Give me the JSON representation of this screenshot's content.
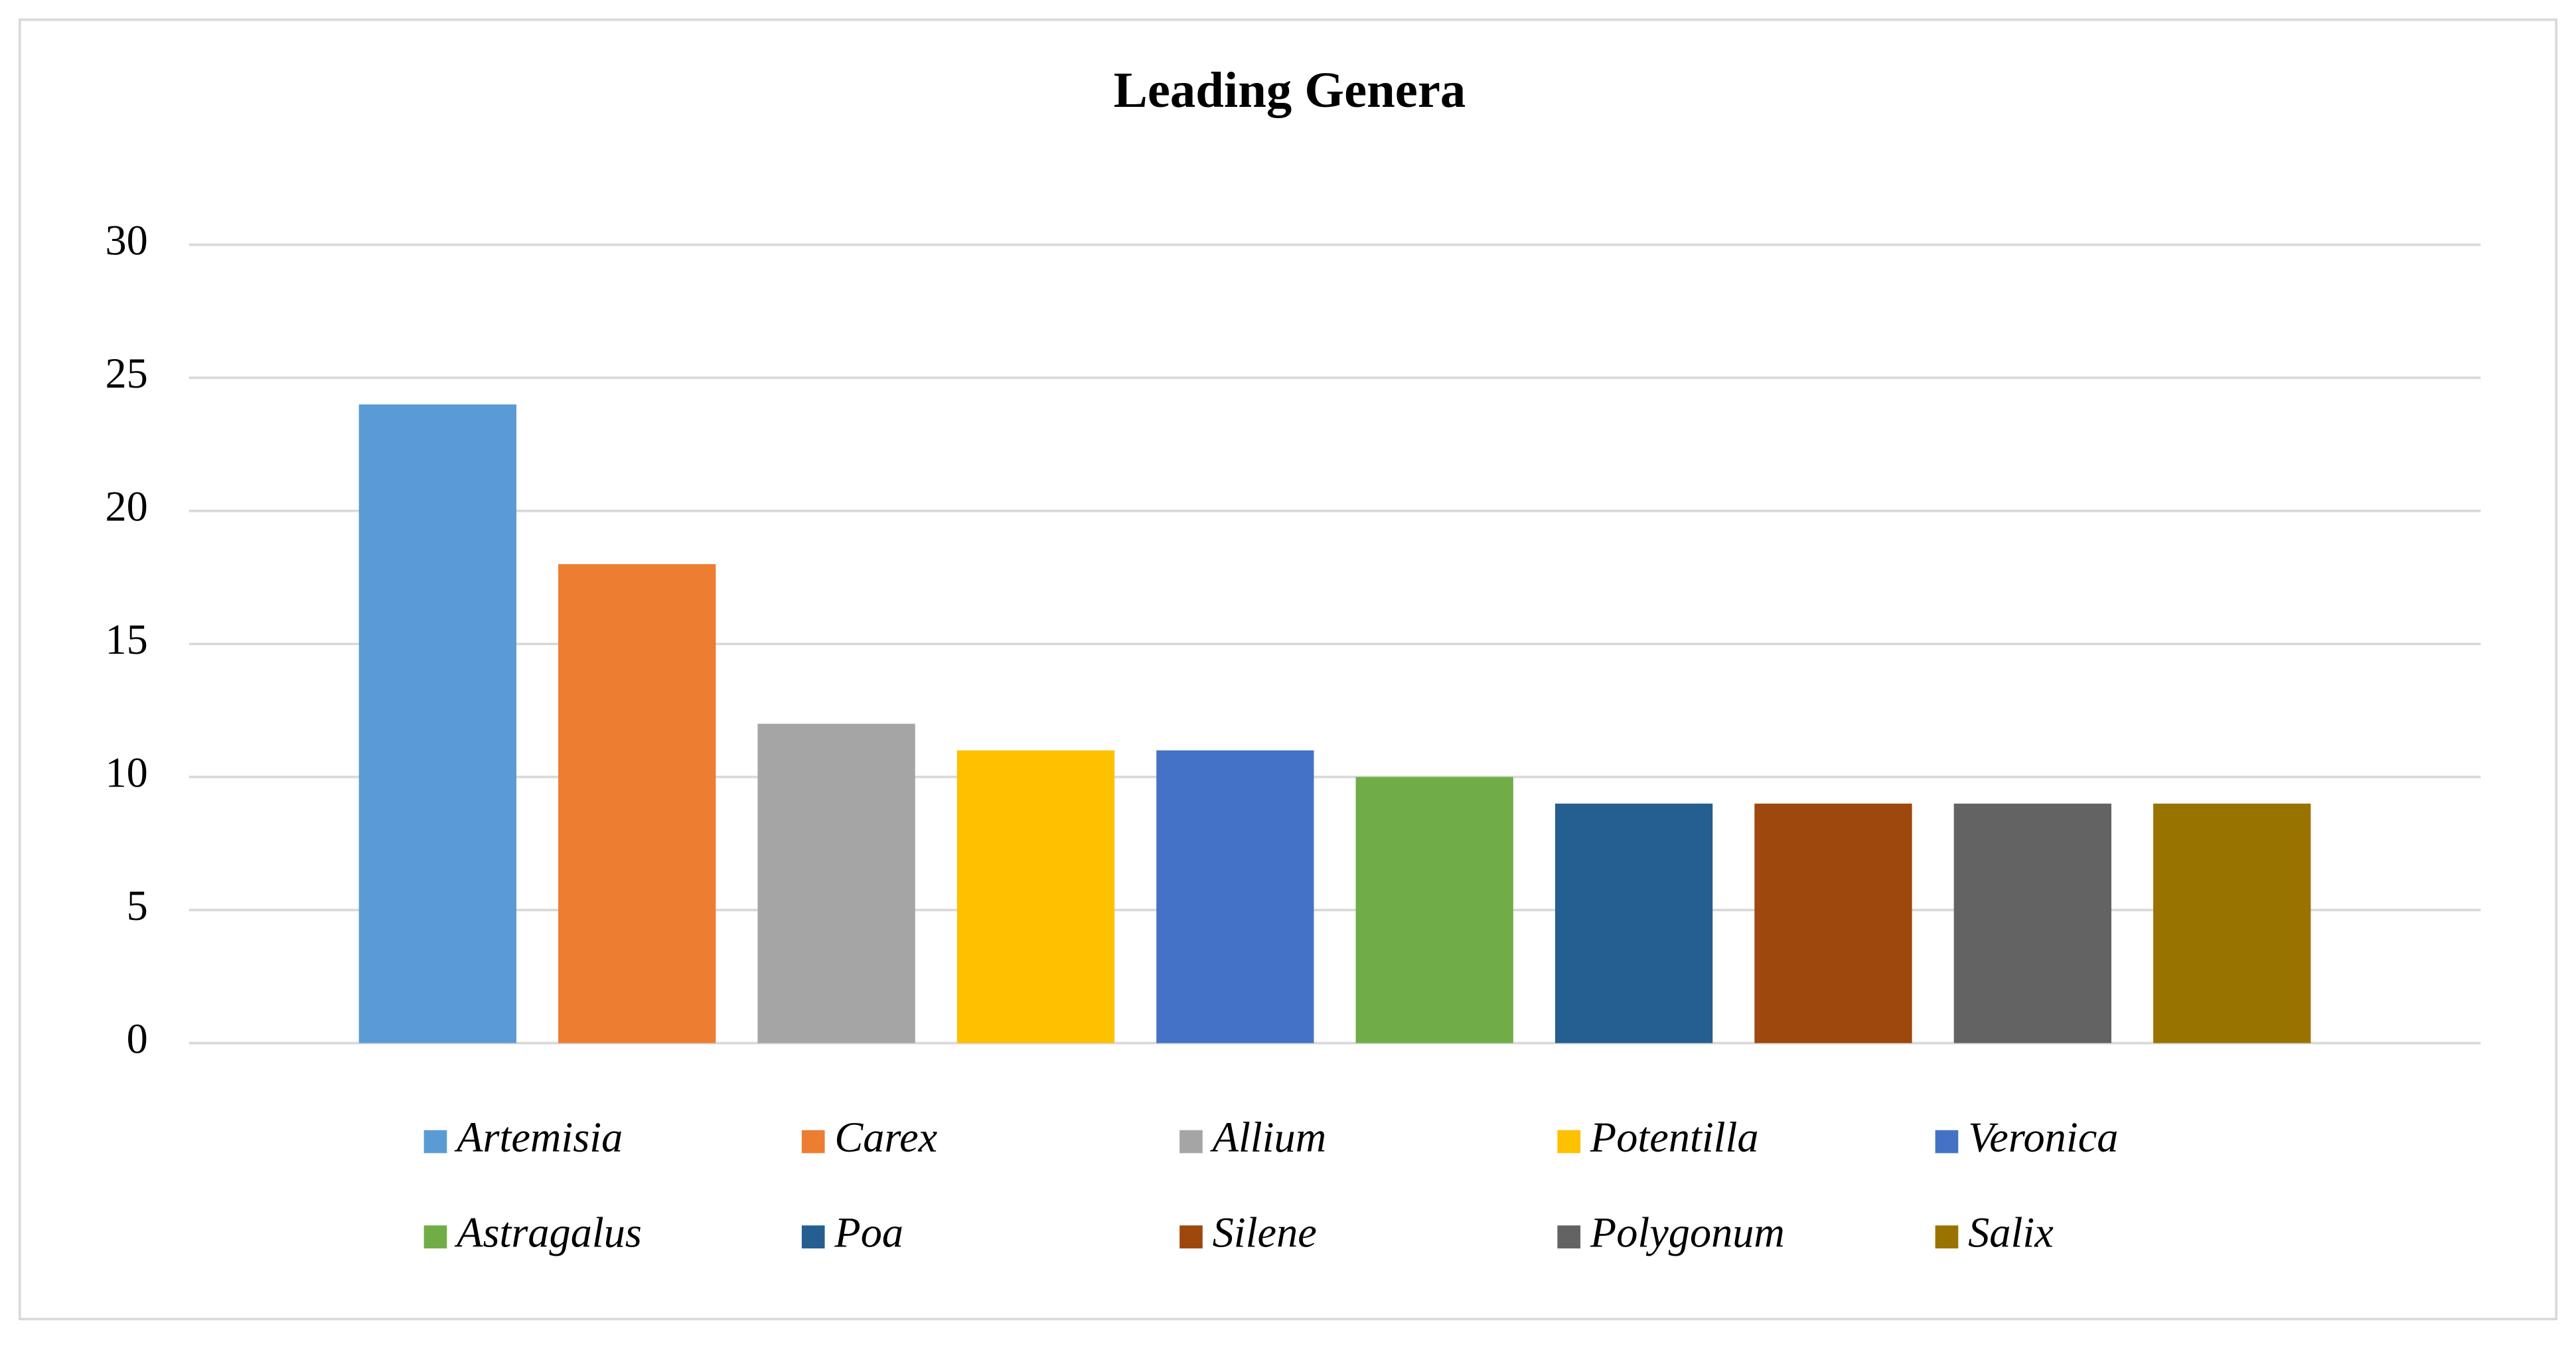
{
  "chart_data": {
    "type": "bar",
    "title": "Leading Genera",
    "series": [
      {
        "name": "Artemisia",
        "color": "#5b9bd5",
        "values": [
          24
        ]
      },
      {
        "name": "Carex",
        "color": "#ed7d31",
        "values": [
          18
        ]
      },
      {
        "name": "Allium",
        "color": "#a5a5a5",
        "values": [
          12
        ]
      },
      {
        "name": "Potentilla",
        "color": "#ffc000",
        "values": [
          11
        ]
      },
      {
        "name": "Veronica",
        "color": "#4472c4",
        "values": [
          11
        ]
      },
      {
        "name": "Astragalus",
        "color": "#70ad47",
        "values": [
          10
        ]
      },
      {
        "name": "Poa",
        "color": "#255e91",
        "values": [
          9
        ]
      },
      {
        "name": "Silene",
        "color": "#9e480e",
        "values": [
          9
        ]
      },
      {
        "name": "Polygonum",
        "color": "#636363",
        "values": [
          9
        ]
      },
      {
        "name": "Salix",
        "color": "#997300",
        "values": [
          9
        ]
      }
    ],
    "ylim": [
      0,
      30
    ],
    "yticks": [
      0,
      5,
      10,
      15,
      20,
      25,
      30
    ],
    "grid": true,
    "legend": "bottom"
  }
}
